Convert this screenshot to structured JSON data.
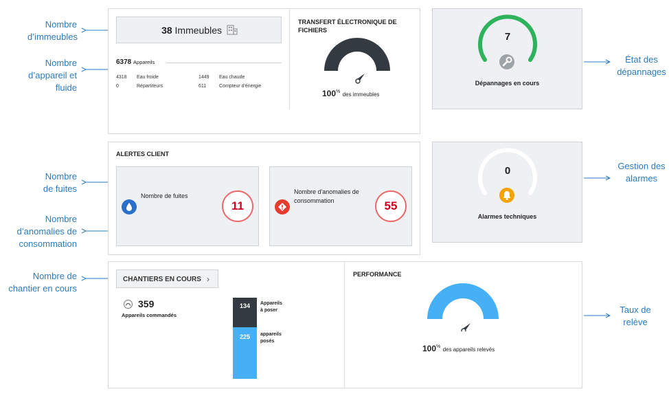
{
  "annotations": {
    "nombre_immeubles": [
      "Nombre",
      "d’immeubles"
    ],
    "nombre_appareil": [
      "Nombre",
      "d’appareil et",
      "fluide"
    ],
    "nombre_fuites": [
      "Nombre",
      "de fuites"
    ],
    "nombre_anomalies": [
      "Nombre",
      "d’anomalies de",
      "consommation"
    ],
    "nombre_chantier": [
      "Nombre de",
      "chantier en cours"
    ],
    "etat_depannages": [
      "État des",
      "dépannages"
    ],
    "gestion_alarmes": [
      "Gestion des",
      "alarmes"
    ],
    "taux_releve": [
      "Taux de",
      "relève"
    ]
  },
  "buildings": {
    "count": "38",
    "label": "Immeubles"
  },
  "devices": {
    "total": "6378",
    "total_label": "Appareils",
    "rows": [
      {
        "v1": "4318",
        "l1": "Eau froide",
        "v2": "1449",
        "l2": "Eau chaude"
      },
      {
        "v1": "0",
        "l1": "Répartiteurs",
        "v2": "611",
        "l2": "Compteur d'énergie"
      }
    ]
  },
  "transfer": {
    "title_line1": "TRANSFERT ÉLECTRONIQUE DE",
    "title_line2": "FICHIERS",
    "percent": "100",
    "percent_sign": "%",
    "suffix": "des immeubles",
    "fraction": 1.0
  },
  "repairs": {
    "value": "7",
    "label": "Dépannages en cours",
    "color": "#2eb35c"
  },
  "alerts": {
    "title": "ALERTES CLIENT",
    "leaks": {
      "label": "Nombre de fuites",
      "value": "11"
    },
    "anomalies": {
      "label_line1": "Nombre d'anomalies de",
      "label_line2": "consommation",
      "value": "55"
    }
  },
  "alarms": {
    "value": "0",
    "label": "Alarmes techniques",
    "color": "#f4a300"
  },
  "worksites": {
    "button": "CHANTIERS EN COURS",
    "ordered_value": "359",
    "ordered_label": "Appareils commandés",
    "to_install_value": "134",
    "to_install_label_line1": "Appareils",
    "to_install_label_line2": "à poser",
    "installed_value": "225",
    "installed_label_line1": "appareils",
    "installed_label_line2": "posés"
  },
  "performance": {
    "title": "PERFORMANCE",
    "percent": "100",
    "percent_sign": "%",
    "suffix": "des appareils relevés",
    "fraction": 1.0,
    "color": "#45b0f5"
  },
  "colors": {
    "annotation": "#2b7bc0",
    "alert_red": "#e63c2f",
    "badge_red": "#d0021b",
    "dark": "#333a42",
    "blue": "#45b0f5"
  }
}
